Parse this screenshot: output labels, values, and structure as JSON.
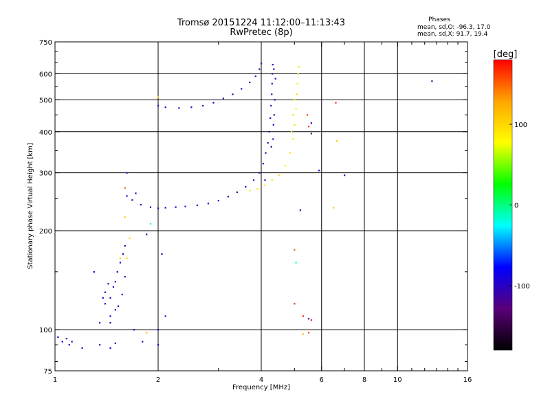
{
  "header": {
    "title": "Tromsø 20151224 11:12:00–11:13:43",
    "subtitle": "RwPretec (8p)",
    "phases_title": "Phases",
    "phases_o": "mean, sd,O: -96.3, 17.0",
    "phases_x": "mean, sd,X:  91.7, 19.4"
  },
  "colorbar": {
    "label": "[deg]",
    "min": -180,
    "max": 180,
    "ticks": [
      100,
      0,
      -100
    ],
    "colors": [
      "#000000",
      "#5a0078",
      "#0000ff",
      "#00ffff",
      "#00ff00",
      "#ffff00",
      "#ffa500",
      "#ff0000"
    ]
  },
  "chart_data": {
    "type": "scatter",
    "xlabel": "Frequency [MHz]",
    "ylabel": "Stationary phase Virtual Height [km]",
    "x_scale": "log",
    "y_scale": "log",
    "xlim": [
      1,
      16
    ],
    "ylim": [
      75,
      750
    ],
    "x_ticks": [
      1,
      2,
      4,
      6,
      8,
      10,
      16
    ],
    "y_ticks": [
      75,
      100,
      200,
      300,
      400,
      500,
      600,
      750
    ],
    "x_grid": [
      2,
      4,
      6,
      8,
      10
    ],
    "y_grid": [
      100,
      200,
      300,
      400,
      500,
      600
    ],
    "grid": true,
    "series": [
      {
        "points": [
          [
            1.62,
            255,
            -95
          ],
          [
            1.68,
            248,
            -100
          ],
          [
            1.78,
            240,
            -95
          ],
          [
            1.9,
            236,
            -100
          ],
          [
            2.0,
            234,
            -105
          ],
          [
            2.1,
            235,
            -100
          ],
          [
            2.25,
            236,
            -95
          ],
          [
            2.4,
            237,
            -100
          ],
          [
            2.6,
            239,
            -105
          ],
          [
            2.8,
            242,
            -100
          ],
          [
            3.0,
            247,
            -95
          ],
          [
            3.2,
            254,
            -100
          ],
          [
            3.4,
            262,
            -110
          ],
          [
            3.6,
            272,
            -100
          ],
          [
            3.8,
            285,
            -95
          ],
          [
            3.95,
            300,
            -100
          ],
          [
            4.05,
            320,
            -105
          ],
          [
            4.12,
            345,
            -100
          ],
          [
            4.18,
            370,
            -95
          ],
          [
            4.22,
            400,
            -100
          ],
          [
            4.25,
            440,
            -95
          ],
          [
            4.27,
            480,
            -100
          ],
          [
            4.29,
            520,
            -105
          ],
          [
            4.3,
            560,
            -100
          ],
          [
            4.31,
            600,
            -95
          ],
          [
            4.32,
            640,
            -100
          ],
          [
            4.35,
            620,
            -110
          ],
          [
            4.4,
            580,
            -95
          ],
          [
            4.38,
            500,
            -100
          ],
          [
            4.36,
            450,
            -120
          ],
          [
            4.34,
            420,
            -90
          ],
          [
            4.33,
            380,
            -100
          ],
          [
            4.28,
            360,
            -105
          ]
        ],
        "color": "#0000ff"
      },
      {
        "points": [
          [
            2.0,
            480,
            -100
          ],
          [
            2.1,
            475,
            -95
          ],
          [
            2.3,
            472,
            -100
          ],
          [
            2.5,
            475,
            -105
          ],
          [
            2.7,
            480,
            -100
          ],
          [
            2.9,
            490,
            -95
          ],
          [
            3.1,
            505,
            -100
          ],
          [
            3.3,
            520,
            -105
          ],
          [
            3.5,
            540,
            -100
          ],
          [
            3.7,
            565,
            -95
          ],
          [
            3.85,
            590,
            -100
          ],
          [
            3.95,
            620,
            -105
          ],
          [
            4.0,
            645,
            -100
          ]
        ],
        "color": "#0000ff"
      },
      {
        "points": [
          [
            3.7,
            265,
            90
          ],
          [
            3.9,
            268,
            95
          ],
          [
            4.1,
            275,
            90
          ],
          [
            4.3,
            285,
            95
          ],
          [
            4.5,
            295,
            100
          ],
          [
            4.7,
            315,
            90
          ],
          [
            4.85,
            345,
            95
          ],
          [
            4.95,
            380,
            90
          ],
          [
            5.0,
            420,
            95
          ],
          [
            5.05,
            470,
            90
          ],
          [
            5.08,
            520,
            95
          ],
          [
            5.1,
            560,
            90
          ],
          [
            5.12,
            600,
            95
          ],
          [
            5.15,
            630,
            90
          ],
          [
            5.0,
            500,
            90
          ],
          [
            4.95,
            450,
            95
          ],
          [
            4.9,
            400,
            90
          ]
        ],
        "color": "#ffff00"
      },
      {
        "points": [
          [
            1.4,
            130,
            -100
          ],
          [
            1.45,
            125,
            -95
          ],
          [
            1.5,
            140,
            -100
          ],
          [
            1.52,
            150,
            -95
          ],
          [
            1.55,
            160,
            -105
          ],
          [
            1.58,
            170,
            -100
          ],
          [
            1.6,
            180,
            -95
          ],
          [
            1.62,
            165,
            100
          ],
          [
            1.5,
            115,
            -100
          ],
          [
            1.45,
            110,
            -95
          ],
          [
            1.4,
            120,
            -100
          ],
          [
            1.35,
            105,
            -95
          ],
          [
            1.3,
            150,
            -100
          ],
          [
            1.48,
            135,
            -100
          ],
          [
            1.53,
            118,
            -100
          ],
          [
            1.57,
            128,
            -105
          ],
          [
            1.43,
            138,
            -95
          ],
          [
            1.6,
            145,
            -100
          ],
          [
            1.38,
            125,
            -100
          ]
        ],
        "color": "#0000ff"
      },
      {
        "points": [
          [
            1.02,
            95,
            -100
          ],
          [
            1.05,
            92,
            -95
          ],
          [
            1.08,
            94,
            -100
          ],
          [
            1.1,
            90,
            -100
          ],
          [
            1.12,
            92,
            -95
          ],
          [
            1.2,
            88,
            -100
          ],
          [
            1.35,
            90,
            -100
          ],
          [
            1.45,
            88,
            -95
          ],
          [
            1.5,
            91,
            -100
          ],
          [
            1.8,
            92,
            -100
          ],
          [
            2.0,
            90,
            -100
          ]
        ],
        "color": "#0000ff"
      },
      {
        "points": [
          [
            1.62,
            300,
            -100
          ],
          [
            1.6,
            270,
            150
          ],
          [
            1.72,
            260,
            -95
          ],
          [
            1.85,
            195,
            -100
          ],
          [
            1.9,
            210,
            -10
          ],
          [
            1.6,
            220,
            110
          ],
          [
            2.05,
            170,
            -100
          ],
          [
            2.0,
            100,
            -100
          ],
          [
            1.65,
            190,
            100
          ],
          [
            1.55,
            165,
            110
          ],
          [
            2.0,
            510,
            100
          ],
          [
            5.0,
            175,
            150
          ],
          [
            5.0,
            120,
            170
          ],
          [
            5.05,
            160,
            -10
          ],
          [
            5.3,
            110,
            170
          ],
          [
            5.5,
            108,
            -100
          ],
          [
            5.6,
            107,
            170
          ],
          [
            5.3,
            97,
            120
          ],
          [
            5.5,
            98,
            160
          ],
          [
            6.5,
            235,
            110
          ],
          [
            6.6,
            490,
            170
          ],
          [
            7.0,
            295,
            -95
          ],
          [
            6.65,
            375,
            110
          ],
          [
            12.6,
            570,
            -120
          ],
          [
            5.9,
            305,
            -100
          ],
          [
            5.6,
            395,
            -130
          ],
          [
            5.2,
            231,
            -100
          ],
          [
            5.45,
            450,
            160
          ],
          [
            5.5,
            415,
            165
          ],
          [
            5.6,
            425,
            -100
          ],
          [
            4.1,
            285,
            -100
          ],
          [
            1.45,
            105,
            -100
          ],
          [
            1.7,
            100,
            -95
          ],
          [
            1.85,
            98,
            120
          ],
          [
            2.1,
            110,
            -100
          ]
        ],
        "color": "#800080"
      }
    ]
  }
}
